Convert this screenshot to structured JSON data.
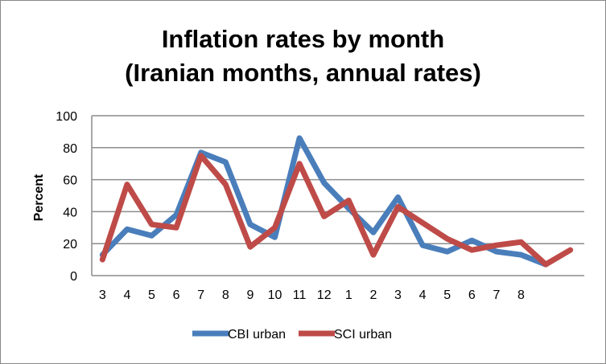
{
  "chart_data": {
    "type": "line",
    "title_line1": "Inflation rates by month",
    "title_line2": "(Iranian months, annual rates)",
    "ylabel": "Percent",
    "xlabel": "",
    "ylim": [
      0,
      100
    ],
    "yticks": [
      0,
      20,
      40,
      60,
      80,
      100
    ],
    "grid": true,
    "legend": "bottom",
    "categories": [
      "3",
      "4",
      "5",
      "6",
      "7",
      "8",
      "9",
      "10",
      "11",
      "12",
      "1",
      "2",
      "3",
      "4",
      "5",
      "6",
      "7",
      "8",
      "",
      ""
    ],
    "series": [
      {
        "name": "CBI urban",
        "color": "#4a7ebb",
        "values": [
          13,
          29,
          25,
          38,
          77,
          71,
          32,
          24,
          86,
          58,
          42,
          27,
          49,
          19,
          15,
          22,
          15,
          13,
          7,
          null
        ]
      },
      {
        "name": "SCI urban",
        "color": "#be4b48",
        "values": [
          10,
          57,
          32,
          30,
          75,
          57,
          18,
          30,
          70,
          37,
          47,
          13,
          43,
          33,
          23,
          16,
          19,
          21,
          7,
          16
        ]
      }
    ]
  }
}
